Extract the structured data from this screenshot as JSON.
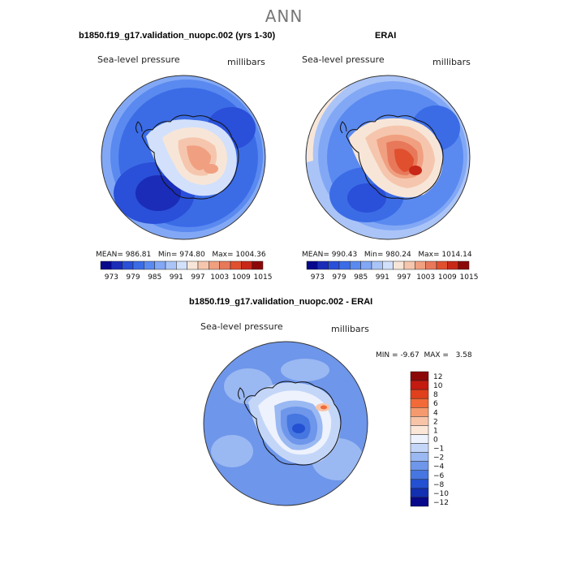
{
  "figure": {
    "suptitle": "ANN"
  },
  "chart_data": [
    {
      "type": "heatmap",
      "title": "b1850.f19_g17.validation_nuopc.002 (yrs 1-30)",
      "left_label": "Sea-level pressure",
      "right_label": "millibars",
      "stats": {
        "mean_label": "MEAN=",
        "mean": "986.81",
        "min_label": "Min=",
        "min": "974.80",
        "max_label": "Max=",
        "max": "1004.36"
      },
      "colorbar": {
        "levels": [
          973,
          976,
          979,
          982,
          985,
          988,
          991,
          994,
          997,
          1000,
          1003,
          1006,
          1009,
          1012,
          1015
        ],
        "tick_labels": [
          "973",
          "979",
          "985",
          "991",
          "997",
          "1003",
          "1009",
          "1015"
        ],
        "colors": [
          "#08088c",
          "#1a2cb8",
          "#2a4fd8",
          "#3b6ce6",
          "#5a8af0",
          "#82a8f5",
          "#aac4f8",
          "#d2e0fb",
          "#f7e6d8",
          "#f5c6ad",
          "#f0a080",
          "#e8785a",
          "#e0502e",
          "#c82818",
          "#8c0808"
        ]
      }
    },
    {
      "type": "heatmap",
      "title": "ERAI",
      "left_label": "Sea-level pressure",
      "right_label": "millibars",
      "stats": {
        "mean_label": "MEAN=",
        "mean": "990.43",
        "min_label": "Min=",
        "min": "980.24",
        "max_label": "Max=",
        "max": "1014.14"
      },
      "colorbar": {
        "levels": [
          973,
          976,
          979,
          982,
          985,
          988,
          991,
          994,
          997,
          1000,
          1003,
          1006,
          1009,
          1012,
          1015
        ],
        "tick_labels": [
          "973",
          "979",
          "985",
          "991",
          "997",
          "1003",
          "1009",
          "1015"
        ],
        "colors": [
          "#08088c",
          "#1a2cb8",
          "#2a4fd8",
          "#3b6ce6",
          "#5a8af0",
          "#82a8f5",
          "#aac4f8",
          "#d2e0fb",
          "#f7e6d8",
          "#f5c6ad",
          "#f0a080",
          "#e8785a",
          "#e0502e",
          "#c82818",
          "#8c0808"
        ]
      }
    },
    {
      "type": "heatmap",
      "title": "b1850.f19_g17.validation_nuopc.002 - ERAI",
      "left_label": "Sea-level pressure",
      "right_label": "millibars",
      "stats": {
        "min_label": "MIN =",
        "min": "-9.67",
        "max_label": "MAX =",
        "max": "3.58"
      },
      "colorbar": {
        "levels": [
          12,
          10,
          8,
          6,
          4,
          2,
          1,
          0,
          -1,
          -2,
          -4,
          -6,
          -8,
          -10,
          -12
        ],
        "tick_labels": [
          "12",
          "10",
          "8",
          "6",
          "4",
          "2",
          "1",
          "0",
          "−1",
          "−2",
          "−4",
          "−6",
          "−8",
          "−10",
          "−12"
        ],
        "colors": [
          "#8c0808",
          "#c41a10",
          "#e0401c",
          "#f26a38",
          "#f59a6e",
          "#f8c4a8",
          "#fbe6d8",
          "#eef2fd",
          "#c4d6f8",
          "#9ab8f2",
          "#6e96ea",
          "#4676e0",
          "#2450d2",
          "#1230b0",
          "#08088a"
        ]
      }
    }
  ]
}
